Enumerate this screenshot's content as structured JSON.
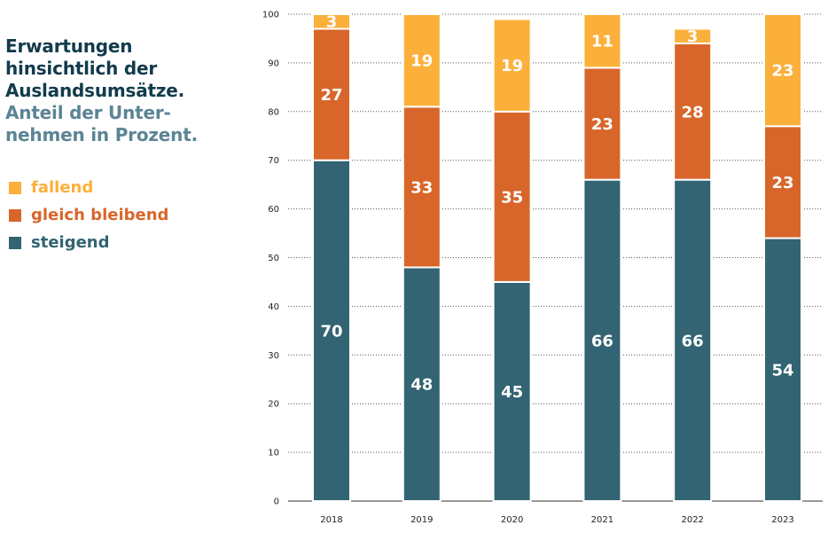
{
  "title": "Erwartungen\nhinsichtlich der\nAuslandsumsätze.",
  "subtitle": "Anteil der Unter-\nnehmen in Prozent.",
  "colors": {
    "fallend": "#fbb03b",
    "gleich_bleibend": "#d8662a",
    "steigend": "#326473",
    "title": "#123b4c",
    "subtitle": "#5b8494"
  },
  "legend": [
    {
      "key": "fallend",
      "label": "fallend"
    },
    {
      "key": "gleich_bleibend",
      "label": "gleich bleibend"
    },
    {
      "key": "steigend",
      "label": "steigend"
    }
  ],
  "chart_data": {
    "type": "bar",
    "stacked": true,
    "categories": [
      "2018",
      "2019",
      "2020",
      "2021",
      "2022",
      "2023"
    ],
    "series": [
      {
        "name": "steigend",
        "key": "steigend",
        "values": [
          70,
          48,
          45,
          66,
          66,
          54
        ]
      },
      {
        "name": "gleich bleibend",
        "key": "gleich_bleibend",
        "values": [
          27,
          33,
          35,
          23,
          28,
          23
        ]
      },
      {
        "name": "fallend",
        "key": "fallend",
        "values": [
          3,
          19,
          19,
          11,
          3,
          23
        ]
      }
    ],
    "ylim": [
      0,
      100
    ],
    "yticks": [
      0,
      10,
      20,
      30,
      40,
      50,
      60,
      70,
      80,
      90,
      100
    ],
    "grid": true,
    "legend_position": "left"
  }
}
